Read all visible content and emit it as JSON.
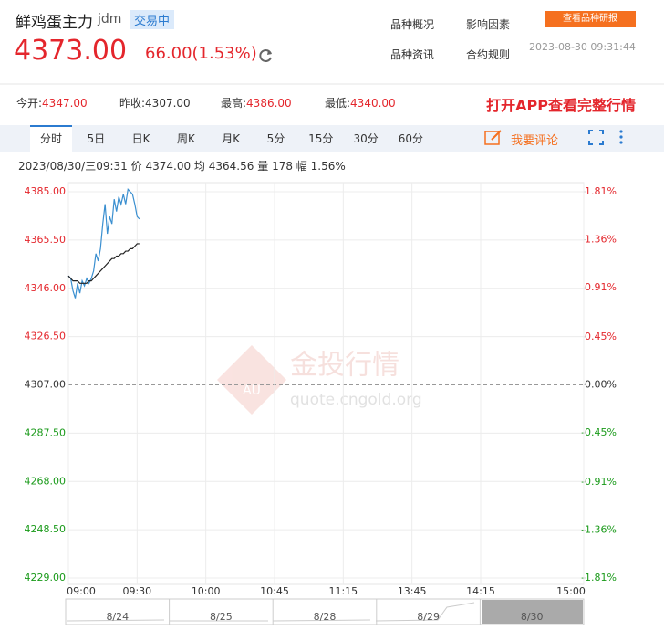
{
  "header": {
    "name": "鲜鸡蛋主力",
    "code": "jdm",
    "status": "交易中",
    "price": "4373.00",
    "change": "66.00(1.53%)",
    "links": [
      "品种概况",
      "影响因素",
      "品种资讯",
      "合约规则"
    ],
    "button": "查看品种研报",
    "timestamp": "2023-08-30 09:31:44"
  },
  "stats": [
    {
      "label": "今开:",
      "value": "4347.00"
    },
    {
      "label": "昨收:",
      "value": "4307.00"
    },
    {
      "label": "最高:",
      "value": "4386.00"
    },
    {
      "label": "最低:",
      "value": "4340.00"
    }
  ],
  "promo": "打开APP查看完整行情",
  "tabs": [
    "分时",
    "5日",
    "日K",
    "周K",
    "月K",
    "5分",
    "15分",
    "30分",
    "60分"
  ],
  "comment": "我要评论",
  "info": {
    "time": "2023/08/30/三09:31",
    "items": [
      {
        "label": "价",
        "value": "4374.00"
      },
      {
        "label": "均",
        "value": "4364.56"
      },
      {
        "label": "量",
        "value": "178"
      },
      {
        "label": "幅",
        "value": "1.56%"
      }
    ]
  },
  "watermark": {
    "title": "金投行情",
    "url": "quote.cngold.org"
  },
  "chart_data": {
    "type": "line",
    "x": [
      0,
      1,
      2,
      3,
      4,
      5,
      6,
      7,
      8,
      9,
      10,
      11,
      12,
      13,
      14,
      15,
      16,
      17,
      18,
      19,
      20,
      21,
      22,
      23,
      24,
      25,
      26,
      27,
      28,
      29,
      30,
      31
    ],
    "series": [
      {
        "name": "价",
        "color": "#3a8fd0",
        "values": [
          4351,
          4350,
          4345,
          4342,
          4348,
          4344,
          4349,
          4347,
          4350,
          4348,
          4350,
          4353,
          4360,
          4357,
          4362,
          4372,
          4380,
          4368,
          4375,
          4372,
          4382,
          4377,
          4383,
          4380,
          4384,
          4380,
          4386,
          4385,
          4384,
          4380,
          4375,
          4374
        ]
      },
      {
        "name": "均",
        "color": "#222222",
        "values": [
          4351,
          4350,
          4349,
          4349,
          4349,
          4348,
          4348,
          4348,
          4348,
          4349,
          4349,
          4350,
          4351,
          4352,
          4353,
          4354,
          4355,
          4356,
          4357,
          4358,
          4358,
          4359,
          4359,
          4360,
          4360,
          4361,
          4361,
          4362,
          4362,
          4363,
          4364,
          4364
        ]
      }
    ],
    "xlim": [
      0,
      225
    ],
    "xticks": [
      {
        "value": 0,
        "label": "09:00"
      },
      {
        "value": 30,
        "label": "09:30"
      },
      {
        "value": 60,
        "label": "10:00"
      },
      {
        "value": 90,
        "label": "10:45"
      },
      {
        "value": 120,
        "label": "11:15"
      },
      {
        "value": 150,
        "label": "13:45"
      },
      {
        "value": 180,
        "label": "14:15"
      },
      {
        "value": 225,
        "label": "15:00"
      }
    ],
    "ylim": [
      4229,
      4385
    ],
    "yticks": [
      {
        "value": 4385,
        "label": "4385.00"
      },
      {
        "value": 4365.5,
        "label": "4365.50"
      },
      {
        "value": 4346,
        "label": "4346.00"
      },
      {
        "value": 4326.5,
        "label": "4326.50"
      },
      {
        "value": 4307,
        "label": "4307.00"
      },
      {
        "value": 4287.5,
        "label": "4287.50"
      },
      {
        "value": 4268,
        "label": "4268.00"
      },
      {
        "value": 4248.5,
        "label": "4248.50"
      },
      {
        "value": 4229,
        "label": "4229.00"
      }
    ],
    "y2lim": [
      -1.81,
      1.81
    ],
    "y2ticks": [
      {
        "value": 1.81,
        "label": "1.81%"
      },
      {
        "value": 1.36,
        "label": "1.36%"
      },
      {
        "value": 0.91,
        "label": "0.91%"
      },
      {
        "value": 0.45,
        "label": "0.45%"
      },
      {
        "value": 0,
        "label": "0.00%"
      },
      {
        "value": -0.45,
        "label": "-0.45%"
      },
      {
        "value": -0.91,
        "label": "-0.91%"
      },
      {
        "value": -1.36,
        "label": "-1.36%"
      },
      {
        "value": -1.81,
        "label": "-1.81%"
      }
    ],
    "grid": true,
    "navigator": {
      "categories": [
        "8/24",
        "8/25",
        "8/28",
        "8/29",
        "8/30"
      ]
    }
  }
}
